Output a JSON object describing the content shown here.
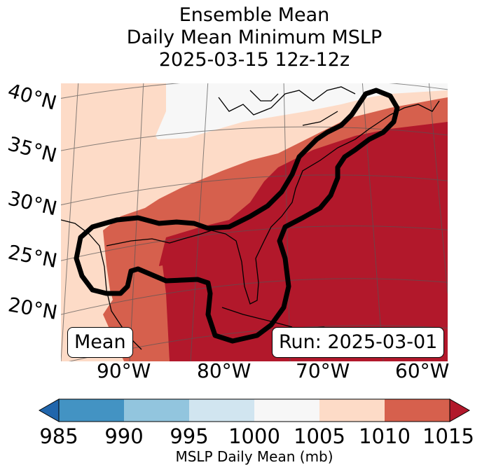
{
  "title": {
    "line1": "Ensemble Mean",
    "line2": "Daily Mean Minimum MSLP",
    "line3": "2025-03-15 12z-12z"
  },
  "lat_labels": [
    "40°N",
    "35°N",
    "30°N",
    "25°N",
    "20°N"
  ],
  "lon_labels": [
    "90°W",
    "80°W",
    "70°W",
    "60°W"
  ],
  "annotations": {
    "left_box": "Mean",
    "right_box": "Run: 2025-03-01"
  },
  "colorbar": {
    "label": "MSLP Daily Mean (mb)",
    "ticks": [
      "985",
      "990",
      "995",
      "1000",
      "1005",
      "1010",
      "1015"
    ],
    "under_color": "#2166ac",
    "over_color": "#b2182b",
    "bins": [
      {
        "from": 985,
        "to": 990,
        "color": "#4393c3"
      },
      {
        "from": 990,
        "to": 995,
        "color": "#92c5de"
      },
      {
        "from": 995,
        "to": 1000,
        "color": "#d1e5f0"
      },
      {
        "from": 1000,
        "to": 1005,
        "color": "#f7f7f7"
      },
      {
        "from": 1005,
        "to": 1010,
        "color": "#fddbc7"
      },
      {
        "from": 1010,
        "to": 1015,
        "color": "#d6604d"
      }
    ]
  },
  "map_colors": {
    "lt_1005": "#f7f7f7",
    "r1005_1010": "#fddbc7",
    "r1010_1015": "#d6604d",
    "gt_1015": "#b2182b",
    "contour": "#000000",
    "coast": "#000000",
    "grid": "#555555"
  }
}
